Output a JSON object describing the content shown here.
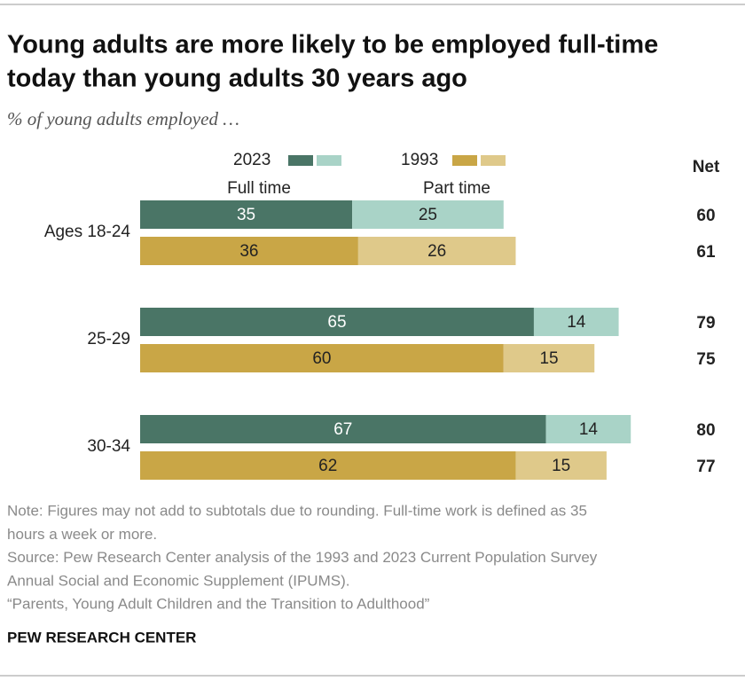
{
  "chart_data": {
    "type": "bar",
    "orientation": "horizontal",
    "stacked": true,
    "title": [
      "Young adults are more likely to be employed full-time",
      "today than young adults 30 years ago"
    ],
    "subtitle": "% of young adults employed …",
    "categories": [
      "Ages 18-24",
      "25-29",
      "30-34"
    ],
    "segment_labels": [
      "Full time",
      "Part time"
    ],
    "net_label": "Net",
    "series": [
      {
        "name": "2023",
        "colors": [
          "#4a7566",
          "#a9d3c7"
        ],
        "values": [
          [
            35,
            25
          ],
          [
            65,
            14
          ],
          [
            67,
            14
          ]
        ],
        "net": [
          60,
          79,
          80
        ]
      },
      {
        "name": "1993",
        "colors": [
          "#c9a646",
          "#dfc98a"
        ],
        "values": [
          [
            36,
            26
          ],
          [
            60,
            15
          ],
          [
            62,
            15
          ]
        ],
        "net": [
          61,
          75,
          77
        ]
      }
    ],
    "notes": [
      "Note: Figures may not add to subtotals due to rounding. Full-time work is defined as 35",
      "hours a week or more.",
      "Source: Pew Research Center analysis of the 1993 and 2023 Current Population Survey",
      "Annual Social and Economic Supplement (IPUMS).",
      "“Parents, Young Adult Children and the Transition to Adulthood”"
    ],
    "source_brand": "PEW RESEARCH CENTER"
  }
}
